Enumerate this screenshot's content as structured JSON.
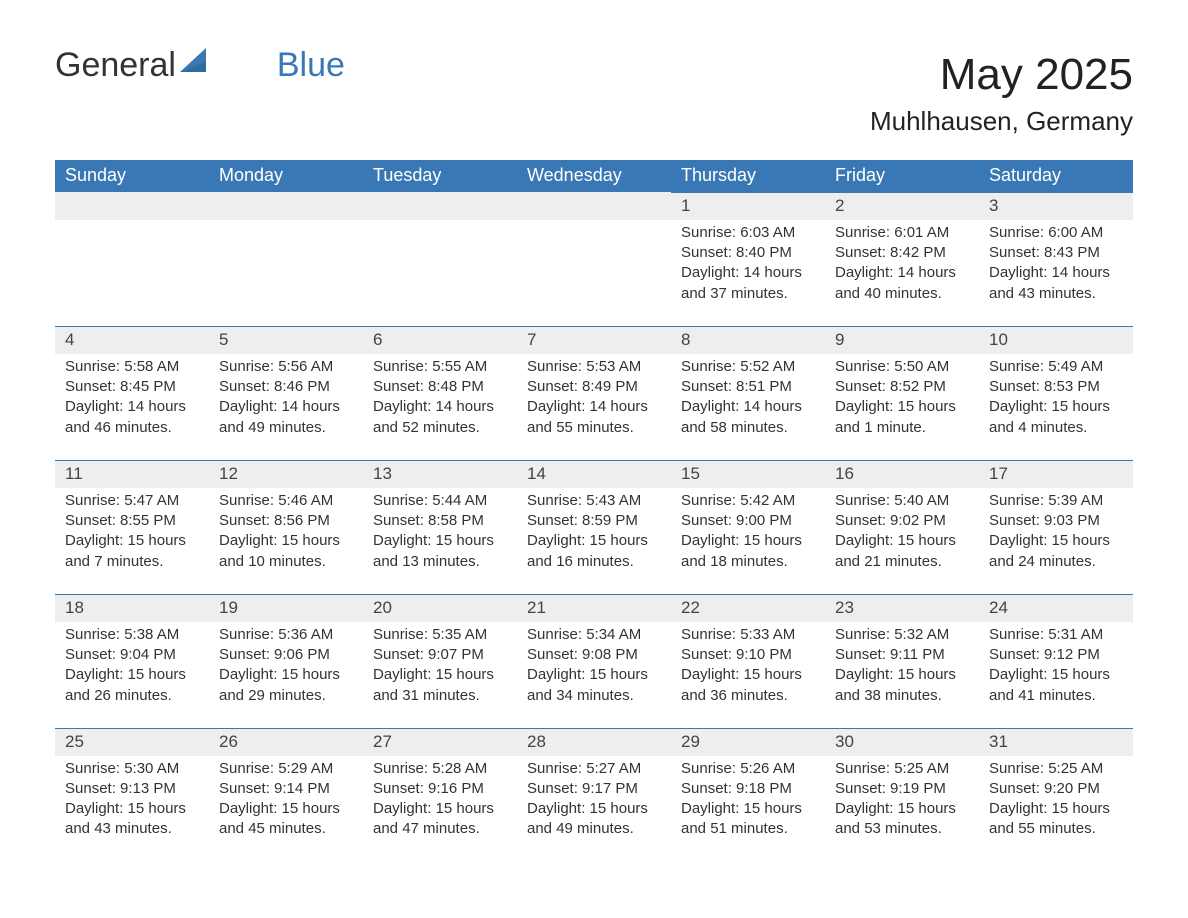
{
  "brand": {
    "name_part1": "General",
    "name_part2": "Blue",
    "color_dark": "#333333",
    "color_accent": "#3a78b5"
  },
  "header": {
    "month_title": "May 2025",
    "location": "Muhlhausen, Germany"
  },
  "columns": [
    "Sunday",
    "Monday",
    "Tuesday",
    "Wednesday",
    "Thursday",
    "Friday",
    "Saturday"
  ],
  "colors": {
    "header_bg": "#3a78b5",
    "header_text": "#ffffff",
    "daynum_bg": "#eeeeee",
    "row_border": "#3a78b5",
    "body_text": "#333333",
    "page_bg": "#ffffff"
  },
  "weeks": [
    [
      {
        "day": "",
        "sunrise": "",
        "sunset": "",
        "daylight": ""
      },
      {
        "day": "",
        "sunrise": "",
        "sunset": "",
        "daylight": ""
      },
      {
        "day": "",
        "sunrise": "",
        "sunset": "",
        "daylight": ""
      },
      {
        "day": "",
        "sunrise": "",
        "sunset": "",
        "daylight": ""
      },
      {
        "day": "1",
        "sunrise": "Sunrise: 6:03 AM",
        "sunset": "Sunset: 8:40 PM",
        "daylight": "Daylight: 14 hours and 37 minutes."
      },
      {
        "day": "2",
        "sunrise": "Sunrise: 6:01 AM",
        "sunset": "Sunset: 8:42 PM",
        "daylight": "Daylight: 14 hours and 40 minutes."
      },
      {
        "day": "3",
        "sunrise": "Sunrise: 6:00 AM",
        "sunset": "Sunset: 8:43 PM",
        "daylight": "Daylight: 14 hours and 43 minutes."
      }
    ],
    [
      {
        "day": "4",
        "sunrise": "Sunrise: 5:58 AM",
        "sunset": "Sunset: 8:45 PM",
        "daylight": "Daylight: 14 hours and 46 minutes."
      },
      {
        "day": "5",
        "sunrise": "Sunrise: 5:56 AM",
        "sunset": "Sunset: 8:46 PM",
        "daylight": "Daylight: 14 hours and 49 minutes."
      },
      {
        "day": "6",
        "sunrise": "Sunrise: 5:55 AM",
        "sunset": "Sunset: 8:48 PM",
        "daylight": "Daylight: 14 hours and 52 minutes."
      },
      {
        "day": "7",
        "sunrise": "Sunrise: 5:53 AM",
        "sunset": "Sunset: 8:49 PM",
        "daylight": "Daylight: 14 hours and 55 minutes."
      },
      {
        "day": "8",
        "sunrise": "Sunrise: 5:52 AM",
        "sunset": "Sunset: 8:51 PM",
        "daylight": "Daylight: 14 hours and 58 minutes."
      },
      {
        "day": "9",
        "sunrise": "Sunrise: 5:50 AM",
        "sunset": "Sunset: 8:52 PM",
        "daylight": "Daylight: 15 hours and 1 minute."
      },
      {
        "day": "10",
        "sunrise": "Sunrise: 5:49 AM",
        "sunset": "Sunset: 8:53 PM",
        "daylight": "Daylight: 15 hours and 4 minutes."
      }
    ],
    [
      {
        "day": "11",
        "sunrise": "Sunrise: 5:47 AM",
        "sunset": "Sunset: 8:55 PM",
        "daylight": "Daylight: 15 hours and 7 minutes."
      },
      {
        "day": "12",
        "sunrise": "Sunrise: 5:46 AM",
        "sunset": "Sunset: 8:56 PM",
        "daylight": "Daylight: 15 hours and 10 minutes."
      },
      {
        "day": "13",
        "sunrise": "Sunrise: 5:44 AM",
        "sunset": "Sunset: 8:58 PM",
        "daylight": "Daylight: 15 hours and 13 minutes."
      },
      {
        "day": "14",
        "sunrise": "Sunrise: 5:43 AM",
        "sunset": "Sunset: 8:59 PM",
        "daylight": "Daylight: 15 hours and 16 minutes."
      },
      {
        "day": "15",
        "sunrise": "Sunrise: 5:42 AM",
        "sunset": "Sunset: 9:00 PM",
        "daylight": "Daylight: 15 hours and 18 minutes."
      },
      {
        "day": "16",
        "sunrise": "Sunrise: 5:40 AM",
        "sunset": "Sunset: 9:02 PM",
        "daylight": "Daylight: 15 hours and 21 minutes."
      },
      {
        "day": "17",
        "sunrise": "Sunrise: 5:39 AM",
        "sunset": "Sunset: 9:03 PM",
        "daylight": "Daylight: 15 hours and 24 minutes."
      }
    ],
    [
      {
        "day": "18",
        "sunrise": "Sunrise: 5:38 AM",
        "sunset": "Sunset: 9:04 PM",
        "daylight": "Daylight: 15 hours and 26 minutes."
      },
      {
        "day": "19",
        "sunrise": "Sunrise: 5:36 AM",
        "sunset": "Sunset: 9:06 PM",
        "daylight": "Daylight: 15 hours and 29 minutes."
      },
      {
        "day": "20",
        "sunrise": "Sunrise: 5:35 AM",
        "sunset": "Sunset: 9:07 PM",
        "daylight": "Daylight: 15 hours and 31 minutes."
      },
      {
        "day": "21",
        "sunrise": "Sunrise: 5:34 AM",
        "sunset": "Sunset: 9:08 PM",
        "daylight": "Daylight: 15 hours and 34 minutes."
      },
      {
        "day": "22",
        "sunrise": "Sunrise: 5:33 AM",
        "sunset": "Sunset: 9:10 PM",
        "daylight": "Daylight: 15 hours and 36 minutes."
      },
      {
        "day": "23",
        "sunrise": "Sunrise: 5:32 AM",
        "sunset": "Sunset: 9:11 PM",
        "daylight": "Daylight: 15 hours and 38 minutes."
      },
      {
        "day": "24",
        "sunrise": "Sunrise: 5:31 AM",
        "sunset": "Sunset: 9:12 PM",
        "daylight": "Daylight: 15 hours and 41 minutes."
      }
    ],
    [
      {
        "day": "25",
        "sunrise": "Sunrise: 5:30 AM",
        "sunset": "Sunset: 9:13 PM",
        "daylight": "Daylight: 15 hours and 43 minutes."
      },
      {
        "day": "26",
        "sunrise": "Sunrise: 5:29 AM",
        "sunset": "Sunset: 9:14 PM",
        "daylight": "Daylight: 15 hours and 45 minutes."
      },
      {
        "day": "27",
        "sunrise": "Sunrise: 5:28 AM",
        "sunset": "Sunset: 9:16 PM",
        "daylight": "Daylight: 15 hours and 47 minutes."
      },
      {
        "day": "28",
        "sunrise": "Sunrise: 5:27 AM",
        "sunset": "Sunset: 9:17 PM",
        "daylight": "Daylight: 15 hours and 49 minutes."
      },
      {
        "day": "29",
        "sunrise": "Sunrise: 5:26 AM",
        "sunset": "Sunset: 9:18 PM",
        "daylight": "Daylight: 15 hours and 51 minutes."
      },
      {
        "day": "30",
        "sunrise": "Sunrise: 5:25 AM",
        "sunset": "Sunset: 9:19 PM",
        "daylight": "Daylight: 15 hours and 53 minutes."
      },
      {
        "day": "31",
        "sunrise": "Sunrise: 5:25 AM",
        "sunset": "Sunset: 9:20 PM",
        "daylight": "Daylight: 15 hours and 55 minutes."
      }
    ]
  ]
}
